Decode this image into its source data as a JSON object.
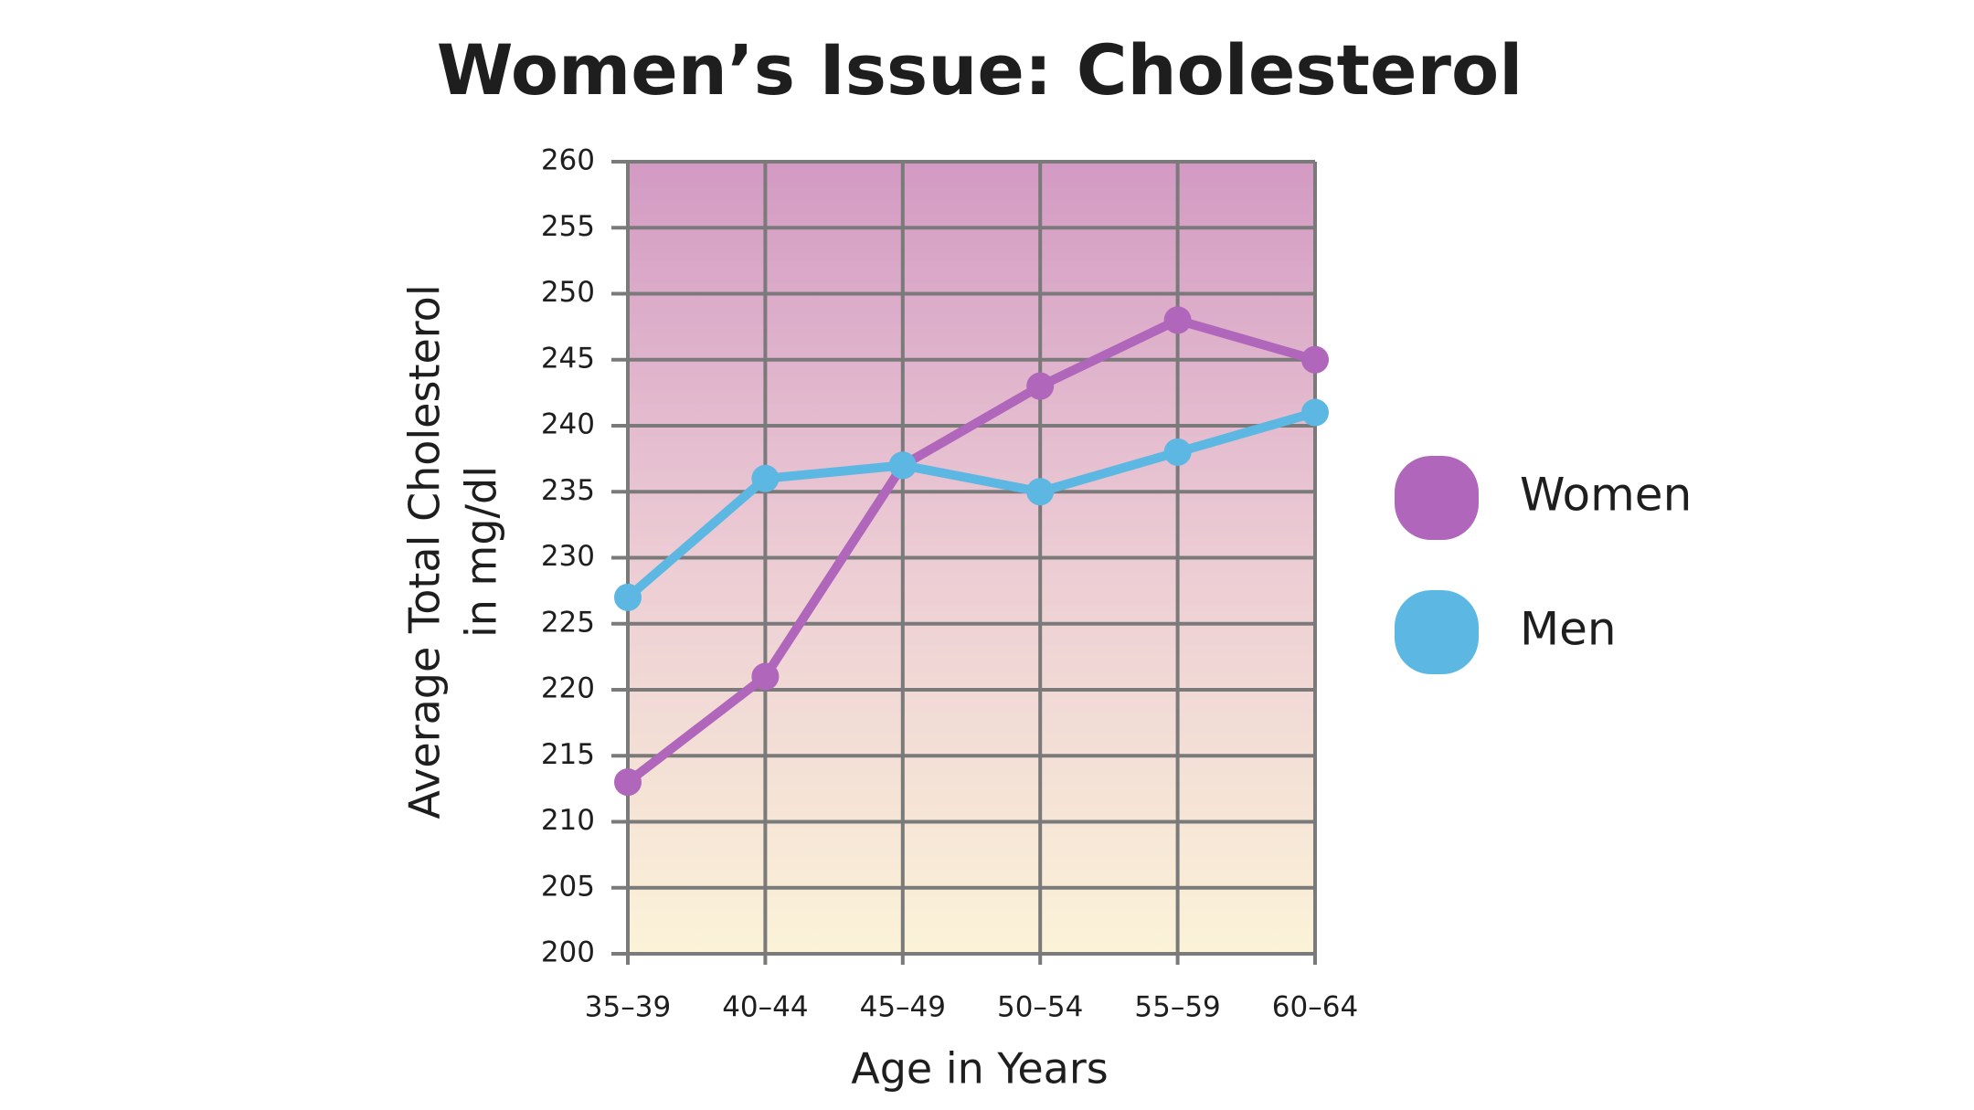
{
  "chart_data": {
    "type": "line",
    "title": "Women’s Issue: Cholesterol",
    "xlabel": "Age in Years",
    "ylabel": [
      "Average Total Cholesterol",
      "in mg/dl"
    ],
    "categories": [
      "35–39",
      "40–44",
      "45–49",
      "50–54",
      "55–59",
      "60–64"
    ],
    "series": [
      {
        "name": "Women",
        "color": "#b066bb",
        "values": [
          213,
          221,
          237,
          243,
          248,
          245
        ]
      },
      {
        "name": "Men",
        "color": "#5cb8e2",
        "values": [
          227,
          236,
          237,
          235,
          238,
          241
        ]
      }
    ],
    "ylim": [
      200,
      260
    ],
    "yticks": [
      200,
      205,
      210,
      215,
      220,
      225,
      230,
      235,
      240,
      245,
      250,
      255,
      260
    ],
    "grid": true,
    "legend": "right"
  }
}
